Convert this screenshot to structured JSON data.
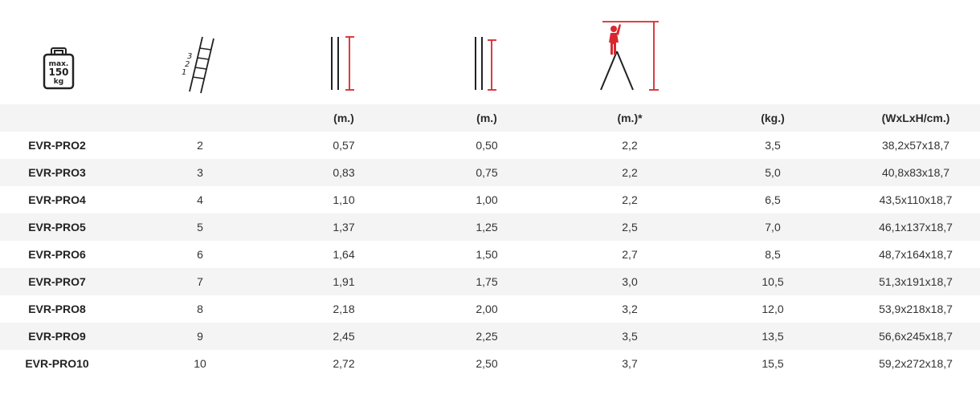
{
  "icons": {
    "weight": {
      "line1": "max.",
      "line2": "150",
      "line3": "kg"
    },
    "ladder_steps": [
      "3",
      "2",
      "1"
    ]
  },
  "colors": {
    "accent": "#d9272e",
    "row_shade": "#f4f4f4",
    "text": "#333333"
  },
  "header": [
    "",
    "",
    "(m.)",
    "(m.)",
    "(m.)*",
    "(kg.)",
    "(WxLxH/cm.)"
  ],
  "rows": [
    [
      "EVR-PRO2",
      "2",
      "0,57",
      "0,50",
      "2,2",
      "3,5",
      "38,2x57x18,7"
    ],
    [
      "EVR-PRO3",
      "3",
      "0,83",
      "0,75",
      "2,2",
      "5,0",
      "40,8x83x18,7"
    ],
    [
      "EVR-PRO4",
      "4",
      "1,10",
      "1,00",
      "2,2",
      "6,5",
      "43,5x110x18,7"
    ],
    [
      "EVR-PRO5",
      "5",
      "1,37",
      "1,25",
      "2,5",
      "7,0",
      "46,1x137x18,7"
    ],
    [
      "EVR-PRO6",
      "6",
      "1,64",
      "1,50",
      "2,7",
      "8,5",
      "48,7x164x18,7"
    ],
    [
      "EVR-PRO7",
      "7",
      "1,91",
      "1,75",
      "3,0",
      "10,5",
      "51,3x191x18,7"
    ],
    [
      "EVR-PRO8",
      "8",
      "2,18",
      "2,00",
      "3,2",
      "12,0",
      "53,9x218x18,7"
    ],
    [
      "EVR-PRO9",
      "9",
      "2,45",
      "2,25",
      "3,5",
      "13,5",
      "56,6x245x18,7"
    ],
    [
      "EVR-PRO10",
      "10",
      "2,72",
      "2,50",
      "3,7",
      "15,5",
      "59,2x272x18,7"
    ]
  ]
}
